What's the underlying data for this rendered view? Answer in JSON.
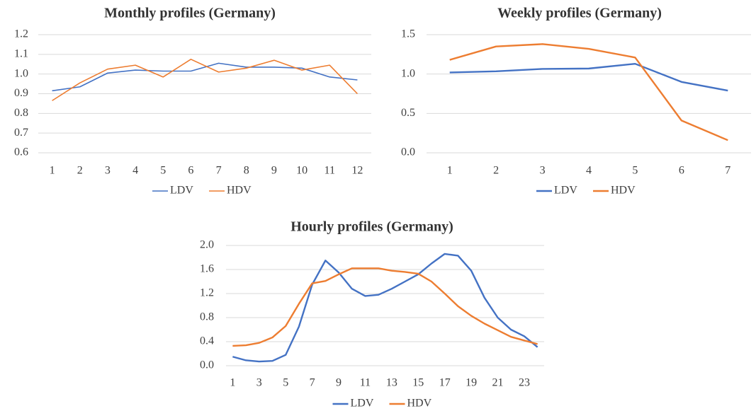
{
  "chart_data": [
    {
      "type": "line",
      "title": "Monthly profiles (Germany)",
      "categories": [
        1,
        2,
        3,
        4,
        5,
        6,
        7,
        8,
        9,
        10,
        11,
        12
      ],
      "series": [
        {
          "name": "LDV",
          "color": "#4472c4",
          "values": [
            0.915,
            0.935,
            1.005,
            1.02,
            1.015,
            1.015,
            1.055,
            1.035,
            1.035,
            1.03,
            0.985,
            0.97
          ]
        },
        {
          "name": "HDV",
          "color": "#ed7d31",
          "values": [
            0.865,
            0.955,
            1.025,
            1.045,
            0.985,
            1.075,
            1.01,
            1.03,
            1.07,
            1.02,
            1.045,
            0.9
          ]
        }
      ],
      "ylim": [
        0.6,
        1.2
      ],
      "yticks": [
        0.6,
        0.7,
        0.8,
        0.9,
        {
          "value": 1,
          "label": "1.0"
        },
        1.1,
        1.2
      ],
      "grid": true,
      "legend": "bottom"
    },
    {
      "type": "line",
      "title": "Weekly profiles (Germany)",
      "categories": [
        1,
        2,
        3,
        4,
        5,
        6,
        7
      ],
      "series": [
        {
          "name": "LDV",
          "color": "#4472c4",
          "values": [
            1.02,
            1.035,
            1.065,
            1.07,
            1.13,
            0.9,
            0.79
          ]
        },
        {
          "name": "HDV",
          "color": "#ed7d31",
          "values": [
            1.18,
            1.35,
            1.38,
            1.32,
            1.21,
            0.41,
            0.16
          ]
        }
      ],
      "ylim": [
        0,
        1.5
      ],
      "yticks": [
        {
          "value": 0,
          "label": "0.0"
        },
        0.5,
        {
          "value": 1,
          "label": "1.0"
        },
        1.5
      ],
      "grid": true,
      "legend": "bottom"
    },
    {
      "type": "line",
      "title": "Hourly profiles (Germany)",
      "categories": [
        1,
        null,
        3,
        null,
        5,
        null,
        7,
        null,
        9,
        null,
        11,
        null,
        13,
        null,
        15,
        null,
        17,
        null,
        19,
        null,
        21,
        null,
        23,
        null
      ],
      "series": [
        {
          "name": "LDV",
          "color": "#4472c4",
          "values": [
            0.15,
            0.09,
            0.07,
            0.08,
            0.18,
            0.65,
            1.35,
            1.75,
            1.55,
            1.28,
            1.16,
            1.18,
            1.28,
            1.4,
            1.52,
            1.7,
            1.86,
            1.83,
            1.58,
            1.13,
            0.8,
            0.6,
            0.49,
            0.31
          ]
        },
        {
          "name": "HDV",
          "color": "#ed7d31",
          "values": [
            0.33,
            0.34,
            0.38,
            0.47,
            0.66,
            1.03,
            1.37,
            1.41,
            1.52,
            1.62,
            1.62,
            1.62,
            1.58,
            1.56,
            1.53,
            1.4,
            1.2,
            0.99,
            0.83,
            0.7,
            0.59,
            0.48,
            0.42,
            0.36
          ]
        }
      ],
      "ylim": [
        0,
        2
      ],
      "yticks": [
        {
          "value": 0,
          "label": "0.0"
        },
        0.4,
        0.8,
        1.2,
        1.6,
        {
          "value": 2,
          "label": "2.0"
        }
      ],
      "grid": true,
      "legend": "bottom"
    }
  ]
}
